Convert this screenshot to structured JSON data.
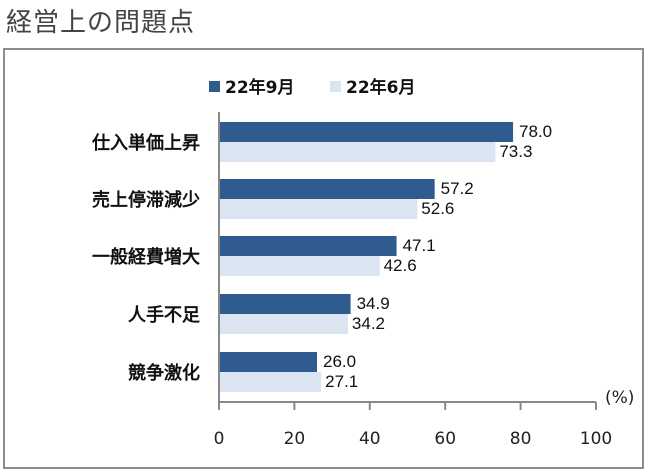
{
  "page_title": "経営上の問題点",
  "chart_data": {
    "type": "bar",
    "orientation": "horizontal",
    "categories": [
      "仕入単価上昇",
      "売上停滞減少",
      "一般経費増大",
      "人手不足",
      "競争激化"
    ],
    "series": [
      {
        "name": "22年9月",
        "color": "#2f5b8f",
        "values": [
          78.0,
          57.2,
          47.1,
          34.9,
          26.0
        ]
      },
      {
        "name": "22年6月",
        "color": "#dbe4f1",
        "values": [
          73.3,
          52.6,
          42.6,
          34.2,
          27.1
        ]
      }
    ],
    "xlim": [
      0,
      100
    ],
    "xticks": [
      "0",
      "20",
      "40",
      "60",
      "80",
      "100"
    ],
    "unit_label": "(%)",
    "legend": "top",
    "grid": false
  }
}
